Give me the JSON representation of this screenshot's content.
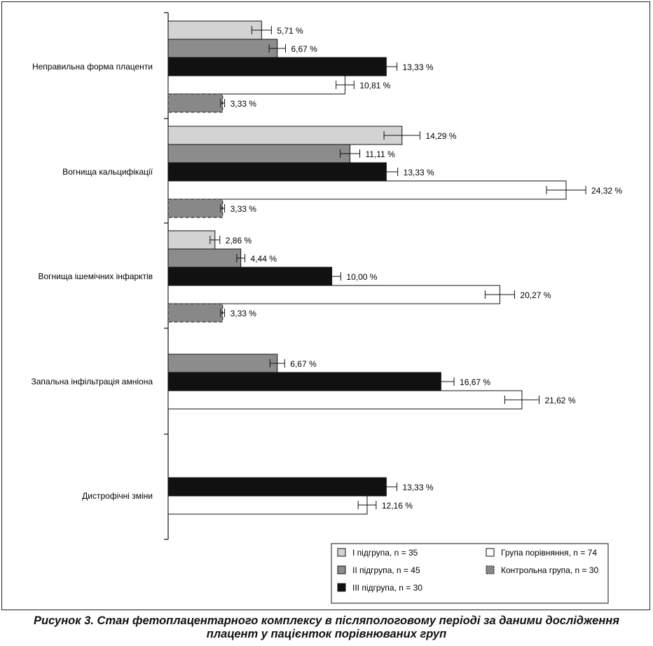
{
  "chart_data": {
    "type": "bar",
    "orientation": "horizontal",
    "unit": "%",
    "categories": [
      "Неправильна форма плаценти",
      "Вогнища кальцифікації",
      "Вогнища ішемічних інфарктів",
      "Запальна інфільтрація амніона",
      "Дистрофічні зміни"
    ],
    "series": [
      {
        "name": "I підгрупа, n = 35",
        "key": "g1",
        "color": "#d3d3d3",
        "dashed": false,
        "values": [
          5.71,
          14.29,
          2.86,
          null,
          null
        ],
        "labels": [
          "5,71 %",
          "14,29 %",
          "2,86 %",
          null,
          null
        ],
        "err": [
          0.6,
          1.1,
          0.3,
          null,
          null
        ]
      },
      {
        "name": "II підгрупа, n = 45",
        "key": "g2",
        "color": "#8c8c8c",
        "dashed": false,
        "values": [
          6.67,
          11.11,
          4.44,
          6.67,
          null
        ],
        "labels": [
          "6,67 %",
          "11,11 %",
          "4,44 %",
          "6,67 %",
          null
        ],
        "err": [
          0.5,
          0.6,
          0.25,
          0.45,
          null
        ]
      },
      {
        "name": "III підгрупа, n = 30",
        "key": "g3",
        "color": "#111111",
        "dashed": false,
        "values": [
          13.33,
          13.33,
          10.0,
          16.67,
          13.33
        ],
        "labels": [
          "13,33 %",
          "13,33 %",
          "10,00 %",
          "16,67 %",
          "13,33 %"
        ],
        "err": [
          0.65,
          0.7,
          0.55,
          0.8,
          0.65
        ]
      },
      {
        "name": "Група порівняння, n = 74",
        "key": "cmp",
        "color": "#ffffff",
        "dashed": false,
        "values": [
          10.81,
          24.32,
          20.27,
          21.62,
          12.16
        ],
        "labels": [
          "10,81 %",
          "24,32 %",
          "20,27 %",
          "21,62 %",
          "12,16 %"
        ],
        "err": [
          0.55,
          1.2,
          0.9,
          1.05,
          0.55
        ]
      },
      {
        "name": "Контрольна група, n = 30",
        "key": "ctl",
        "color": "#8c8c8c",
        "dashed": true,
        "values": [
          3.33,
          3.33,
          3.33,
          null,
          null
        ],
        "labels": [
          "3,33 %",
          "3,33 %",
          "3,33 %",
          null,
          null
        ],
        "err": [
          0.12,
          0.12,
          0.12,
          null,
          null
        ]
      }
    ],
    "xlim": [
      0,
      24.32
    ],
    "grid": false,
    "legend_position": "bottom-right",
    "caption_lines": [
      "Рисунок 3. Стан фетоплацентарного комплексу в післяпологовому періоді за даними дослідження",
      "плацент у пацієнток порівнюваних груп"
    ]
  }
}
